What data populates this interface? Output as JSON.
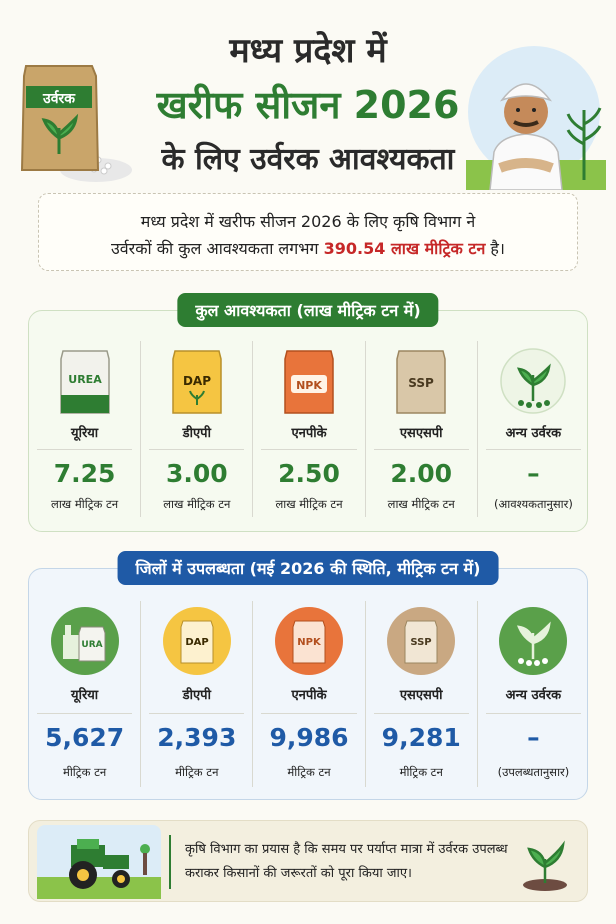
{
  "header": {
    "title_line1": "मध्य प्रदेश में",
    "title_line2": "खरीफ सीजन 2026",
    "title_line3": "के लिए उर्वरक आवश्यकता",
    "bag_label": "उर्वरक"
  },
  "intro": {
    "line1": "मध्य प्रदेश में खरीफ सीजन 2026 के लिए कृषि विभाग ने",
    "line2_prefix": "उर्वरकों की कुल आवश्यकता लगभग ",
    "line2_highlight": "390.54 लाख मीट्रिक टन",
    "line2_suffix": " है।"
  },
  "requirement": {
    "heading": "कुल आवश्यकता (लाख मीट्रिक टन में)",
    "items": [
      {
        "bag_text": "UREA",
        "name": "यूरिया",
        "value": "7.25",
        "unit": "लाख मीट्रिक टन"
      },
      {
        "bag_text": "DAP",
        "name": "डीएपी",
        "value": "3.00",
        "unit": "लाख मीट्रिक टन"
      },
      {
        "bag_text": "NPK",
        "name": "एनपीके",
        "value": "2.50",
        "unit": "लाख मीट्रिक टन"
      },
      {
        "bag_text": "SSP",
        "name": "एसएसपी",
        "value": "2.00",
        "unit": "लाख मीट्रिक टन"
      },
      {
        "bag_text": "",
        "name": "अन्य उर्वरक",
        "value": "–",
        "unit": "(आवश्यकतानुसार)"
      }
    ]
  },
  "availability": {
    "heading": "जिलों में उपलब्धता (मई 2026 की स्थिति, मीट्रिक टन में)",
    "items": [
      {
        "bag_text": "URA",
        "name": "यूरिया",
        "value": "5,627",
        "unit": "मीट्रिक टन"
      },
      {
        "bag_text": "DAP",
        "name": "डीएपी",
        "value": "2,393",
        "unit": "मीट्रिक टन"
      },
      {
        "bag_text": "NPK",
        "name": "एनपीके",
        "value": "9,986",
        "unit": "मीट्रिक टन"
      },
      {
        "bag_text": "SSP",
        "name": "एसएसपी",
        "value": "9,281",
        "unit": "मीट्रिक टन"
      },
      {
        "bag_text": "",
        "name": "अन्य उर्वरक",
        "value": "–",
        "unit": "(उपलब्धतानुसार)"
      }
    ]
  },
  "footer": {
    "text": "कृषि विभाग का प्रयास है कि समय पर पर्याप्त मात्रा में उर्वरक उपलब्ध कराकर किसानों की जरूरतों को पूरा किया जाए।"
  },
  "colors": {
    "green": "#2e7d32",
    "blue": "#1f5aa6",
    "red": "#c62828"
  }
}
